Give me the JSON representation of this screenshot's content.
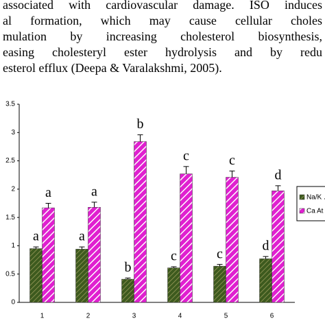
{
  "text_lines": [
    "associated with cardiovascular damage. ISO induces",
    "al formation, which may cause cellular choles",
    "mulation by increasing cholesterol biosynthesis,",
    "easing cholesteryl ester hydrolysis and by redu",
    "esterol efflux (Deepa & Varalakshmi, 2005)."
  ],
  "chart_data": {
    "type": "bar",
    "categories": [
      "1",
      "2",
      "3",
      "4",
      "5",
      "6"
    ],
    "series": [
      {
        "name": "Na/K .",
        "color": "#3d5a1e",
        "values": [
          0.95,
          0.94,
          0.41,
          0.61,
          0.64,
          0.77
        ],
        "errors": [
          0.03,
          0.04,
          0.02,
          0.02,
          0.03,
          0.04
        ],
        "letters": [
          "a",
          "a",
          "b",
          "c",
          "c",
          "d"
        ]
      },
      {
        "name": "Ca At",
        "color": "#e020d0",
        "values": [
          1.67,
          1.68,
          2.84,
          2.27,
          2.21,
          1.97
        ],
        "errors": [
          0.08,
          0.09,
          0.12,
          0.13,
          0.11,
          0.09
        ],
        "letters": [
          "a",
          "a",
          "b",
          "c",
          "c",
          "d"
        ]
      }
    ],
    "ylim": [
      0,
      3.5
    ],
    "yticks": [
      0,
      0.5,
      1,
      1.5,
      2,
      2.5,
      3,
      3.5
    ]
  }
}
